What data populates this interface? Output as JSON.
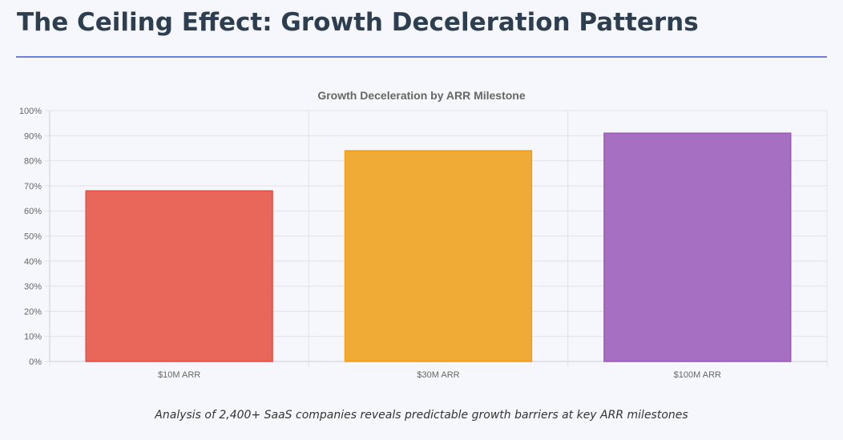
{
  "page": {
    "title": "The Ceiling Effect: Growth Deceleration Patterns",
    "caption": "Analysis of 2,400+ SaaS companies reveals predictable growth barriers at key ARR milestones"
  },
  "chart_data": {
    "type": "bar",
    "title": "Growth Deceleration by ARR Milestone",
    "categories": [
      "$10M ARR",
      "$30M ARR",
      "$100M ARR"
    ],
    "values": [
      68,
      84,
      91
    ],
    "unit": "%",
    "ylim": [
      0,
      100
    ],
    "ytick_step": 10,
    "xlabel": "",
    "ylabel": "",
    "grid": true,
    "legend": "none",
    "colors": [
      "#e8675a",
      "#f0aa36",
      "#a66fc2"
    ],
    "border_colors": [
      "#e74c3c",
      "#f39c12",
      "#9b59b6"
    ]
  }
}
